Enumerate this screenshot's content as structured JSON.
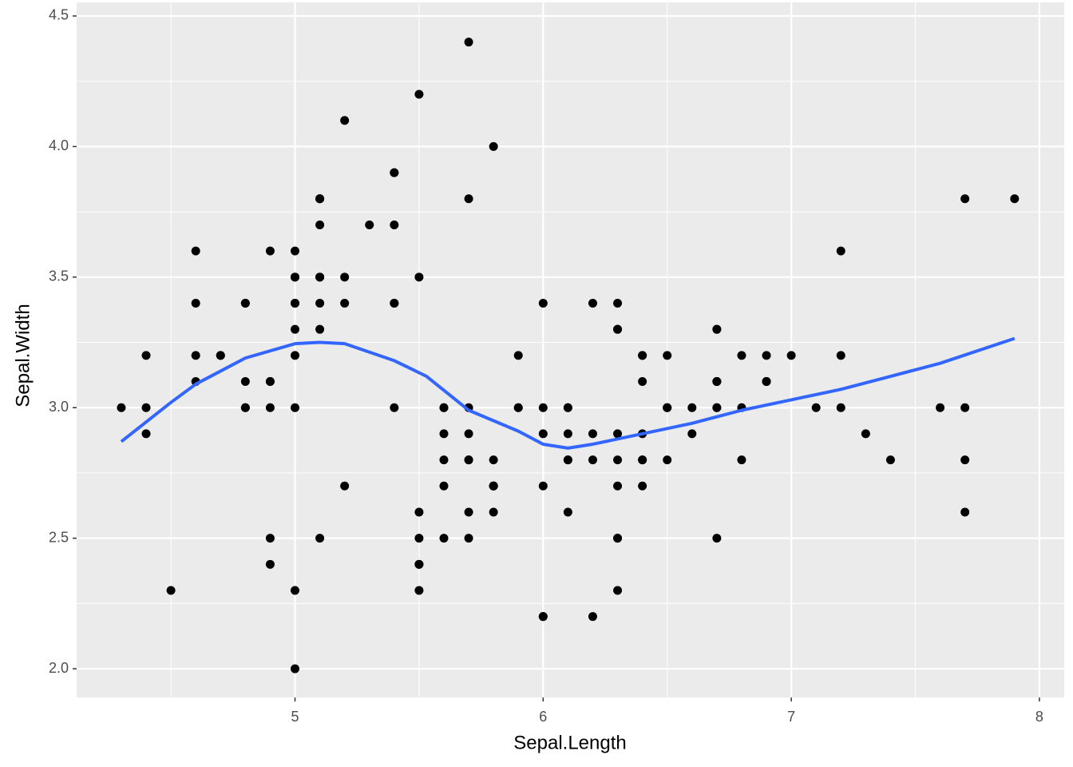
{
  "chart_data": {
    "type": "scatter",
    "x_label": "Sepal.Length",
    "y_label": "Sepal.Width",
    "x": [
      5.1,
      4.9,
      4.7,
      4.6,
      5.0,
      5.4,
      4.6,
      5.0,
      4.4,
      4.9,
      5.4,
      4.8,
      4.8,
      4.3,
      5.8,
      5.7,
      5.4,
      5.1,
      5.7,
      5.1,
      5.4,
      5.1,
      4.6,
      5.1,
      4.8,
      5.0,
      5.0,
      5.2,
      5.2,
      4.7,
      4.8,
      5.4,
      5.2,
      5.5,
      4.9,
      5.0,
      5.5,
      4.9,
      4.4,
      5.1,
      5.0,
      4.5,
      4.4,
      5.0,
      5.1,
      4.8,
      5.1,
      4.6,
      5.3,
      5.0,
      7.0,
      6.4,
      6.9,
      5.5,
      6.5,
      5.7,
      6.3,
      4.9,
      6.6,
      5.2,
      5.0,
      5.9,
      6.0,
      6.1,
      5.6,
      6.7,
      5.6,
      5.8,
      6.2,
      5.6,
      5.9,
      6.1,
      6.3,
      6.1,
      6.4,
      6.6,
      6.8,
      6.7,
      6.0,
      5.7,
      5.5,
      5.5,
      5.8,
      6.0,
      5.4,
      6.0,
      6.7,
      6.3,
      5.6,
      5.5,
      5.5,
      6.1,
      5.8,
      5.0,
      5.6,
      5.7,
      5.7,
      6.2,
      5.1,
      5.7,
      6.3,
      5.8,
      7.1,
      6.3,
      6.5,
      7.6,
      4.9,
      7.3,
      6.7,
      7.2,
      6.5,
      6.4,
      6.8,
      5.7,
      5.8,
      6.4,
      6.5,
      7.7,
      7.7,
      6.0,
      6.9,
      5.6,
      7.7,
      6.3,
      6.7,
      7.2,
      6.2,
      6.1,
      6.4,
      7.2,
      7.4,
      7.9,
      6.4,
      6.3,
      6.1,
      7.7,
      6.3,
      6.4,
      6.0,
      6.9,
      6.7,
      6.9,
      5.8,
      6.8,
      6.7,
      6.7,
      6.3,
      6.5,
      6.2,
      5.9
    ],
    "values": [
      3.5,
      3.0,
      3.2,
      3.1,
      3.6,
      3.9,
      3.4,
      3.4,
      2.9,
      3.1,
      3.7,
      3.4,
      3.0,
      3.0,
      4.0,
      4.4,
      3.9,
      3.5,
      3.8,
      3.8,
      3.4,
      3.7,
      3.6,
      3.3,
      3.4,
      3.0,
      3.4,
      3.5,
      3.4,
      3.2,
      3.1,
      3.4,
      4.1,
      4.2,
      3.1,
      3.2,
      3.5,
      3.6,
      3.0,
      3.4,
      3.5,
      2.3,
      3.2,
      3.5,
      3.8,
      3.0,
      3.8,
      3.2,
      3.7,
      3.3,
      3.2,
      3.2,
      3.1,
      2.3,
      2.8,
      2.8,
      3.3,
      2.4,
      2.9,
      2.7,
      2.0,
      3.0,
      2.2,
      2.9,
      2.9,
      3.1,
      3.0,
      2.7,
      2.2,
      2.5,
      3.2,
      2.8,
      2.5,
      2.8,
      2.9,
      3.0,
      2.8,
      3.0,
      2.9,
      2.6,
      2.4,
      2.4,
      2.7,
      2.7,
      3.0,
      3.4,
      3.1,
      2.3,
      3.0,
      2.5,
      2.6,
      3.0,
      2.6,
      2.3,
      2.7,
      3.0,
      2.9,
      2.9,
      2.5,
      2.8,
      3.3,
      2.7,
      3.0,
      2.9,
      3.0,
      3.0,
      2.5,
      2.9,
      2.5,
      3.6,
      3.2,
      2.7,
      3.0,
      2.5,
      2.8,
      3.2,
      3.0,
      3.8,
      2.6,
      2.2,
      3.2,
      2.8,
      2.8,
      2.7,
      3.3,
      3.2,
      2.8,
      3.0,
      2.8,
      3.0,
      2.8,
      3.8,
      2.8,
      2.8,
      2.6,
      3.0,
      3.4,
      3.1,
      3.0,
      3.1,
      3.1,
      3.1,
      2.7,
      3.2,
      3.3,
      3.0,
      2.5,
      3.0,
      3.4,
      3.0
    ],
    "color": "#000000",
    "smooth": {
      "x": [
        4.3,
        4.5,
        4.6,
        4.8,
        5.0,
        5.1,
        5.2,
        5.4,
        5.53,
        5.7,
        5.9,
        6.0,
        6.1,
        6.2,
        6.4,
        6.6,
        6.8,
        7.0,
        7.2,
        7.4,
        7.6,
        7.9
      ],
      "values": [
        2.87,
        3.02,
        3.09,
        3.19,
        3.245,
        3.25,
        3.245,
        3.18,
        3.12,
        2.99,
        2.91,
        2.86,
        2.845,
        2.86,
        2.9,
        2.94,
        2.99,
        3.03,
        3.07,
        3.12,
        3.17,
        3.265
      ],
      "color": "#3366ff"
    },
    "xlim": [
      4.12,
      8.1
    ],
    "ylim": [
      1.89,
      4.552
    ],
    "xticks": [
      5,
      6,
      7,
      8
    ],
    "yticks": [
      {
        "value": 2.0,
        "label": "2.0"
      },
      2.5,
      {
        "value": 3.0,
        "label": "3.0"
      },
      3.5,
      {
        "value": 4.0,
        "label": "4.0"
      },
      4.5
    ],
    "grid": true
  }
}
